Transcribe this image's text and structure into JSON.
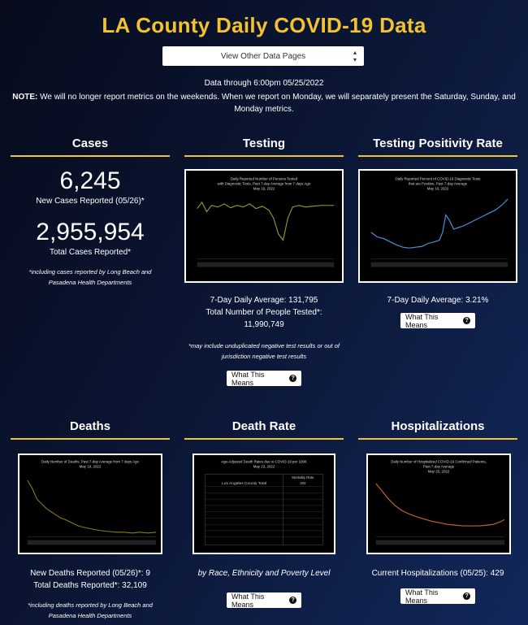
{
  "header": {
    "title": "LA County Daily COVID-19 Data",
    "select_label": "View Other Data Pages",
    "data_through": "Data through 6:00pm 05/25/2022",
    "note_label": "NOTE:",
    "note_text": " We will no longer report metrics on the weekends. When we report on Monday, we will separately present the Saturday, Sunday, and Monday metrics."
  },
  "cases": {
    "title": "Cases",
    "new_cases": "6,245",
    "new_cases_label": "New Cases Reported (05/26)*",
    "total_cases": "2,955,954",
    "total_cases_label": "Total Cases Reported*",
    "footnote": "*including cases reported by Long Beach and Pasadena Health Departments"
  },
  "testing": {
    "title": "Testing",
    "chart_title_1": "Daily Reported Number of Persons Tested",
    "chart_title_2": "with Diagnostic Tests, Past 7-day Average from 7 days Ago",
    "chart_title_3": "May 19, 2022",
    "daily_average": "7-Day Daily Average: 131,795",
    "total_label": "Total Number of People Tested*:",
    "total_value": "11,990,749",
    "footnote": "*may include unduplicated negative test results or out of jurisdiction negative test results",
    "button": "What This Means"
  },
  "positivity": {
    "title": "Testing Positivity Rate",
    "chart_title_1": "Daily Reported Percent of COVID-19 Diagnostic Tests",
    "chart_title_2": "that are Positive, Past 7-day Average",
    "chart_title_3": "May 19, 2022",
    "daily_average": "7-Day Daily Average: 3.21%",
    "button": "What This Means"
  },
  "deaths": {
    "title": "Deaths",
    "chart_title_1": "Daily Number of Deaths, Past 7-day Average from 7 days Ago",
    "chart_title_2": "May 19, 2022",
    "new_deaths": "New Deaths Reported (05/26)*: 9",
    "total_deaths": "Total Deaths Reported*: 32,109",
    "footnote": "*including deaths reported by Long Beach and Pasadena Health Departments"
  },
  "death_rate": {
    "title": "Death Rate",
    "chart_title_1": "Age-Adjusted Death Rates due to COVID-19 per 100K",
    "chart_title_2": "May 23, 2022",
    "table_col_header": "Mortality Rate",
    "table_total_label": "Los Angeles County Total",
    "table_total_value": "202",
    "subtitle": "by Race, Ethnicity and Poverty Level",
    "button": "What This Means"
  },
  "hospitalizations": {
    "title": "Hospitalizations",
    "chart_title_1": "Daily Number of Hospitalized COVID-19 Confirmed Patients,",
    "chart_title_2": "Past 7-day Average",
    "chart_title_3": "May 25, 2022",
    "current": "Current Hospitalizations (05/25): 429",
    "button": "What This Means"
  },
  "colors": {
    "accent": "#f2c230",
    "testing_line": "#9aa02a",
    "positivity_line": "#4a90d9",
    "deaths_line": "#8a7a1a",
    "hosp_line": "#c0672a"
  }
}
